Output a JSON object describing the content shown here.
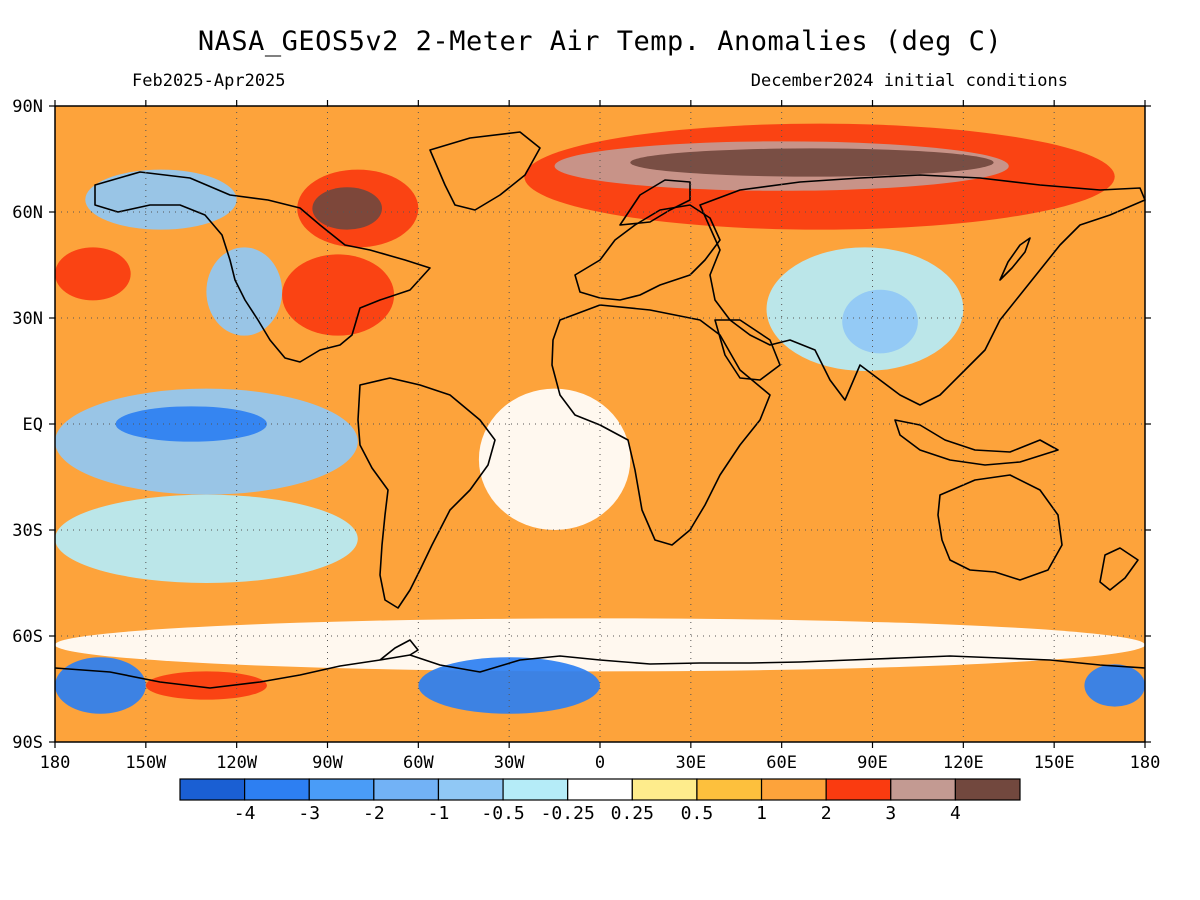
{
  "title": "NASA_GEOS5v2 2-Meter Air Temp. Anomalies (deg C)",
  "subtitle_left": "Feb2025-Apr2025",
  "subtitle_right": "December2024 initial conditions",
  "map": {
    "lon_range": [
      -180,
      180
    ],
    "lat_range": [
      -90,
      90
    ],
    "grid": true,
    "x_ticks": [
      {
        "lon": -180,
        "label": "180"
      },
      {
        "lon": -150,
        "label": "150W"
      },
      {
        "lon": -120,
        "label": "120W"
      },
      {
        "lon": -90,
        "label": "90W"
      },
      {
        "lon": -60,
        "label": "60W"
      },
      {
        "lon": -30,
        "label": "30W"
      },
      {
        "lon": 0,
        "label": "0"
      },
      {
        "lon": 30,
        "label": "30E"
      },
      {
        "lon": 60,
        "label": "60E"
      },
      {
        "lon": 90,
        "label": "90E"
      },
      {
        "lon": 120,
        "label": "120E"
      },
      {
        "lon": 150,
        "label": "150E"
      },
      {
        "lon": 180,
        "label": "180"
      }
    ],
    "y_ticks": [
      {
        "lat": 90,
        "label": "90N"
      },
      {
        "lat": 60,
        "label": "60N"
      },
      {
        "lat": 30,
        "label": "30N"
      },
      {
        "lat": 0,
        "label": "EQ"
      },
      {
        "lat": -30,
        "label": "30S"
      },
      {
        "lat": -60,
        "label": "60S"
      },
      {
        "lat": -90,
        "label": "90S"
      }
    ],
    "background_color": "#fda33b",
    "anomaly_regions": [
      {
        "name": "arctic-siberia",
        "color": "#fa3b10",
        "lon": [
          -25,
          170
        ],
        "lat": [
          55,
          85
        ]
      },
      {
        "name": "arctic-siberia-core",
        "color": "#c39a92",
        "lon": [
          -15,
          135
        ],
        "lat": [
          66,
          80
        ]
      },
      {
        "name": "north-siberia-max",
        "color": "#72483e",
        "lon": [
          10,
          130
        ],
        "lat": [
          70,
          78
        ]
      },
      {
        "name": "hudson-bay",
        "color": "#fa3b10",
        "lon": [
          -100,
          -60
        ],
        "lat": [
          50,
          72
        ]
      },
      {
        "name": "hudson-bay-max",
        "color": "#72483e",
        "lon": [
          -95,
          -72
        ],
        "lat": [
          55,
          67
        ]
      },
      {
        "name": "eastern-usa",
        "color": "#fa3b10",
        "lon": [
          -105,
          -68
        ],
        "lat": [
          25,
          48
        ]
      },
      {
        "name": "north-pacific-warm",
        "color": "#fa3b10",
        "lon": [
          -180,
          -155
        ],
        "lat": [
          35,
          50
        ]
      },
      {
        "name": "alaska-cool",
        "color": "#90c8f5",
        "lon": [
          -170,
          -120
        ],
        "lat": [
          55,
          72
        ]
      },
      {
        "name": "nw-pacific-cool",
        "color": "#90c8f5",
        "lon": [
          -130,
          -105
        ],
        "lat": [
          25,
          50
        ]
      },
      {
        "name": "tropical-pacific-cool",
        "color": "#90c8f5",
        "lon": [
          -180,
          -80
        ],
        "lat": [
          -20,
          10
        ]
      },
      {
        "name": "tropical-pacific-core",
        "color": "#2d7ff2",
        "lon": [
          -160,
          -110
        ],
        "lat": [
          -5,
          5
        ]
      },
      {
        "name": "south-pacific-cool",
        "color": "#b5ecf8",
        "lon": [
          -180,
          -80
        ],
        "lat": [
          -45,
          -20
        ]
      },
      {
        "name": "central-asia-cool",
        "color": "#b5ecf8",
        "lon": [
          55,
          120
        ],
        "lat": [
          15,
          50
        ]
      },
      {
        "name": "tibet-cool",
        "color": "#90c8f5",
        "lon": [
          80,
          105
        ],
        "lat": [
          20,
          38
        ]
      },
      {
        "name": "tropical-atlantic-neutral",
        "color": "#ffffff",
        "lon": [
          -40,
          10
        ],
        "lat": [
          -30,
          10
        ]
      },
      {
        "name": "southern-ocean-neutral",
        "color": "#ffffff",
        "lon": [
          -180,
          180
        ],
        "lat": [
          -70,
          -55
        ]
      },
      {
        "name": "antarctic-cool",
        "color": "#2d7ff2",
        "lon": [
          -60,
          0
        ],
        "lat": [
          -82,
          -66
        ]
      },
      {
        "name": "ross-sea-cool",
        "color": "#2d7ff2",
        "lon": [
          -180,
          -150
        ],
        "lat": [
          -82,
          -66
        ]
      },
      {
        "name": "ross-sea-warm",
        "color": "#fa3b10",
        "lon": [
          -150,
          -110
        ],
        "lat": [
          -78,
          -70
        ]
      },
      {
        "name": "wilkes-cool",
        "color": "#2d7ff2",
        "lon": [
          160,
          180
        ],
        "lat": [
          -80,
          -68
        ]
      }
    ]
  },
  "colorbar": {
    "colors": [
      "#1a5fd3",
      "#2d7ff2",
      "#4a9cf7",
      "#72b2f6",
      "#90c8f5",
      "#b5ecf8",
      "#ffffff",
      "#feec8c",
      "#fdc03d",
      "#fda33b",
      "#fa3b10",
      "#c39a92",
      "#72483e"
    ],
    "labels": [
      "-4",
      "-3",
      "-2",
      "-1",
      "-0.5",
      "-0.25",
      "0.25",
      "0.5",
      "1",
      "2",
      "3",
      "4"
    ]
  }
}
